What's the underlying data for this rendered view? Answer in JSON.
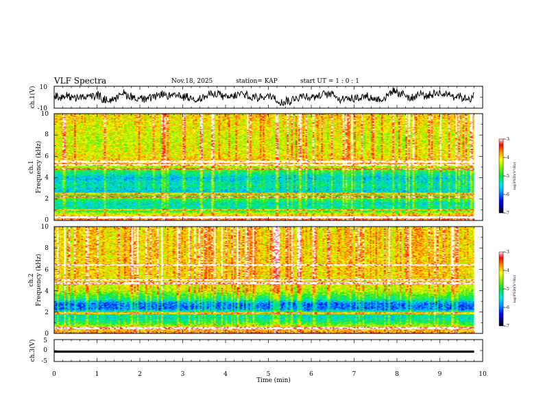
{
  "header": {
    "title": "VLF Spectra",
    "date": "Nov.18, 2025",
    "station": "station= KAP",
    "start_ut": "start  UT =   1 : 0  : 1"
  },
  "chart_data": [
    {
      "type": "line",
      "name": "ch1-waveform",
      "ylabel": "ch.1(V)",
      "ylim": [
        -10,
        10
      ],
      "yticklabels": [
        "10",
        "-10"
      ],
      "xlim": [
        0,
        10
      ],
      "data_end": 9.8,
      "description_of_values": "noisy oscillation mostly between -6 and 8 V"
    },
    {
      "type": "heatmap",
      "name": "ch1-spectrogram",
      "ylabel_line1": "ch.1",
      "ylabel_line2": "Frequency  (kHz)",
      "ylim": [
        0,
        10
      ],
      "yticklabels": [
        "0",
        "2",
        "4",
        "6",
        "8",
        "10"
      ],
      "xlim": [
        0,
        10
      ],
      "data_end": 9.8,
      "colorbar": {
        "min": -7,
        "max": -3,
        "ticks": [
          "-3",
          "-4",
          "-5",
          "-6",
          "-7"
        ],
        "label": "log(PSD)(V²/Hz)"
      },
      "level_profile": [
        [
          0,
          -3.5
        ],
        [
          0.6,
          -4.2
        ],
        [
          1.0,
          -5.2
        ],
        [
          1.6,
          -5.4
        ],
        [
          2.2,
          -4.6
        ],
        [
          2.7,
          -5.6
        ],
        [
          3.3,
          -5.3
        ],
        [
          4.0,
          -5.6
        ],
        [
          4.8,
          -4.8
        ],
        [
          5.3,
          -3.9
        ],
        [
          6.0,
          -4.1
        ],
        [
          7.5,
          -4.3
        ],
        [
          9.0,
          -4.1
        ],
        [
          10,
          -4.0
        ]
      ],
      "band_lines_khz": [
        0.3,
        1.0,
        2.2,
        2.5,
        4.8,
        5.2,
        5.5
      ]
    },
    {
      "type": "heatmap",
      "name": "ch2-spectrogram",
      "ylabel_line1": "ch.2",
      "ylabel_line2": "Frequency  (kHz)",
      "ylim": [
        0,
        10
      ],
      "yticklabels": [
        "0",
        "2",
        "4",
        "6",
        "8",
        "10"
      ],
      "xlim": [
        0,
        10
      ],
      "data_end": 9.8,
      "colorbar": {
        "min": -7,
        "max": -3,
        "ticks": [
          "-3",
          "-4",
          "-5",
          "-6",
          "-7"
        ],
        "label": "log(PSD)(V²/Hz)"
      },
      "level_profile": [
        [
          0,
          -3.6
        ],
        [
          0.6,
          -4.3
        ],
        [
          1.0,
          -5.0
        ],
        [
          1.5,
          -5.4
        ],
        [
          2.0,
          -5.2
        ],
        [
          2.3,
          -6.0
        ],
        [
          2.8,
          -6.0
        ],
        [
          3.2,
          -5.2
        ],
        [
          4.0,
          -4.4
        ],
        [
          5.0,
          -4.1
        ],
        [
          6.0,
          -4.0
        ],
        [
          8.0,
          -4.0
        ],
        [
          10,
          -4.0
        ]
      ],
      "band_lines_khz": [
        0.5,
        1.9,
        4.7,
        5.0,
        6.4
      ]
    },
    {
      "type": "line",
      "name": "ch3-waveform",
      "ylabel": "ch.3(V)",
      "ylim": [
        -5,
        5
      ],
      "yticklabels": [
        "5",
        "-5",
        "0"
      ],
      "xlim": [
        0,
        10
      ],
      "data_end": 9.8,
      "value_center": -0.5,
      "value_band": [
        -1.0,
        0.0
      ]
    }
  ],
  "xaxis": {
    "label": "Time  (min)",
    "ticks": [
      "0",
      "1",
      "2",
      "3",
      "4",
      "5",
      "6",
      "7",
      "8",
      "9",
      "10"
    ]
  }
}
